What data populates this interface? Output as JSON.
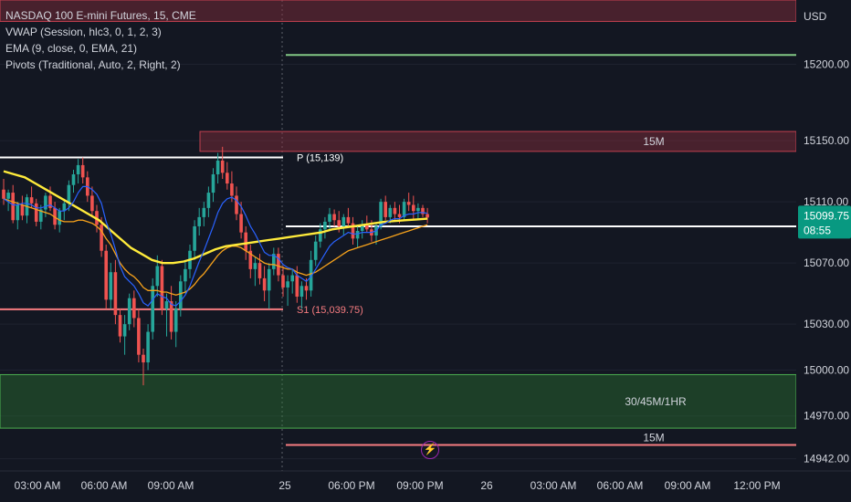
{
  "legend": {
    "symbol": "NASDAQ 100 E-mini Futures, 15, CME",
    "vwap": "VWAP (Session, hlc3, 0, 1, 2, 3)",
    "ema": "EMA (9, close, 0, EMA, 21)",
    "pivots": "Pivots (Traditional, Auto, 2, Right, 2)"
  },
  "currency": "USD",
  "price_tag": {
    "price": "15099.75",
    "countdown": "08:55"
  },
  "alert_icon": "lightning-icon",
  "colors": {
    "background": "#131722",
    "up": "#26a69a",
    "down": "#ef5350",
    "vwap": "#ffeb3b",
    "ema_fast": "#2962ff",
    "ema_slow": "#f7a21b",
    "pivot": "#ffffff",
    "support": "#f77c80",
    "zone_red": "#8a2e3b",
    "zone_green": "#2e7d32",
    "level_green": "#81c784",
    "price_tag": "#089981"
  },
  "chart_data": {
    "type": "candlestick",
    "title": "NASDAQ 100 E-mini Futures, 15, CME",
    "xlabel": "",
    "ylabel": "",
    "ylim": [
      14934,
      15242
    ],
    "yticks": [
      15200.0,
      15150.0,
      15110.0,
      15070.0,
      15030.0,
      15000.0,
      14970.0,
      14942.0
    ],
    "x_ticks": [
      "03:00 AM",
      "06:00 AM",
      "09:00 AM",
      "25",
      "06:00 PM",
      "09:00 PM",
      "26",
      "03:00 AM",
      "06:00 AM",
      "09:00 AM",
      "12:00 PM"
    ],
    "last_price": 15099.75,
    "candles": [
      [
        15118,
        15125,
        15108,
        15112
      ],
      [
        15112,
        15118,
        15104,
        15116
      ],
      [
        15116,
        15121,
        15096,
        15098
      ],
      [
        15098,
        15110,
        15092,
        15108
      ],
      [
        15108,
        15114,
        15098,
        15101
      ],
      [
        15101,
        15115,
        15096,
        15113
      ],
      [
        15113,
        15120,
        15106,
        15109
      ],
      [
        15109,
        15112,
        15094,
        15097
      ],
      [
        15097,
        15108,
        15092,
        15105
      ],
      [
        15105,
        15116,
        15100,
        15114
      ],
      [
        15114,
        15120,
        15104,
        15106
      ],
      [
        15106,
        15110,
        15092,
        15095
      ],
      [
        15095,
        15106,
        15090,
        15104
      ],
      [
        15104,
        15112,
        15098,
        15109
      ],
      [
        15109,
        15124,
        15104,
        15121
      ],
      [
        15121,
        15131,
        15116,
        15128
      ],
      [
        15128,
        15138,
        15122,
        15134
      ],
      [
        15134,
        15139,
        15122,
        15126
      ],
      [
        15126,
        15130,
        15110,
        15114
      ],
      [
        15114,
        15120,
        15100,
        15104
      ],
      [
        15104,
        15108,
        15090,
        15095
      ],
      [
        15095,
        15100,
        15074,
        15078
      ],
      [
        15078,
        15082,
        15040,
        15046
      ],
      [
        15046,
        15070,
        15040,
        15064
      ],
      [
        15064,
        15072,
        15030,
        15036
      ],
      [
        15036,
        15040,
        15018,
        15022
      ],
      [
        15022,
        15036,
        15010,
        15030
      ],
      [
        15030,
        15050,
        15026,
        15047
      ],
      [
        15047,
        15052,
        15028,
        15034
      ],
      [
        15034,
        15040,
        15005,
        15010
      ],
      [
        15010,
        15014,
        14990,
        15005
      ],
      [
        15005,
        15030,
        15000,
        15025
      ],
      [
        15025,
        15060,
        15020,
        15055
      ],
      [
        15055,
        15075,
        15048,
        15068
      ],
      [
        15068,
        15072,
        15036,
        15040
      ],
      [
        15040,
        15050,
        15022,
        15045
      ],
      [
        15045,
        15055,
        15020,
        15025
      ],
      [
        15025,
        15045,
        15015,
        15040
      ],
      [
        15040,
        15062,
        15035,
        15058
      ],
      [
        15058,
        15072,
        15050,
        15066
      ],
      [
        15066,
        15082,
        15060,
        15078
      ],
      [
        15078,
        15098,
        15072,
        15094
      ],
      [
        15094,
        15106,
        15088,
        15100
      ],
      [
        15100,
        15110,
        15094,
        15106
      ],
      [
        15106,
        15120,
        15100,
        15116
      ],
      [
        15116,
        15132,
        15110,
        15128
      ],
      [
        15128,
        15142,
        15122,
        15137
      ],
      [
        15137,
        15146,
        15125,
        15129
      ],
      [
        15129,
        15136,
        15118,
        15122
      ],
      [
        15122,
        15130,
        15110,
        15114
      ],
      [
        15114,
        15120,
        15098,
        15102
      ],
      [
        15102,
        15110,
        15086,
        15090
      ],
      [
        15090,
        15094,
        15072,
        15078
      ],
      [
        15078,
        15082,
        15060,
        15066
      ],
      [
        15066,
        15074,
        15055,
        15070
      ],
      [
        15070,
        15076,
        15056,
        15060
      ],
      [
        15060,
        15068,
        15045,
        15052
      ],
      [
        15052,
        15070,
        15040,
        15066
      ],
      [
        15066,
        15080,
        15062,
        15076
      ],
      [
        15076,
        15080,
        15058,
        15062
      ],
      [
        15062,
        15068,
        15048,
        15054
      ],
      [
        15054,
        15062,
        15042,
        15058
      ],
      [
        15058,
        15066,
        15050,
        15062
      ],
      [
        15062,
        15068,
        15044,
        15048
      ],
      [
        15048,
        15058,
        15040,
        15055
      ],
      [
        15055,
        15060,
        15046,
        15052
      ],
      [
        15052,
        15078,
        15048,
        15072
      ],
      [
        15072,
        15088,
        15068,
        15084
      ],
      [
        15084,
        15096,
        15080,
        15092
      ],
      [
        15092,
        15100,
        15086,
        15097
      ],
      [
        15097,
        15106,
        15092,
        15102
      ],
      [
        15102,
        15105,
        15094,
        15098
      ],
      [
        15098,
        15104,
        15090,
        15094
      ],
      [
        15094,
        15102,
        15088,
        15100
      ],
      [
        15100,
        15106,
        15094,
        15096
      ],
      [
        15096,
        15100,
        15082,
        15086
      ],
      [
        15086,
        15094,
        15080,
        15091
      ],
      [
        15091,
        15098,
        15086,
        15095
      ],
      [
        15095,
        15101,
        15090,
        15092
      ],
      [
        15092,
        15098,
        15084,
        15088
      ],
      [
        15088,
        15096,
        15082,
        15094
      ],
      [
        15094,
        15112,
        15092,
        15110
      ],
      [
        15110,
        15114,
        15098,
        15100
      ],
      [
        15100,
        15108,
        15096,
        15106
      ],
      [
        15106,
        15110,
        15098,
        15102
      ],
      [
        15102,
        15108,
        15096,
        15100
      ],
      [
        15100,
        15112,
        15098,
        15110
      ],
      [
        15110,
        15116,
        15104,
        15108
      ],
      [
        15108,
        15114,
        15098,
        15104
      ],
      [
        15104,
        15109,
        15098,
        15106
      ],
      [
        15106,
        15108,
        15100,
        15102
      ],
      [
        15102,
        15106,
        15096,
        15099.75
      ]
    ],
    "vwap": [
      15130,
      15128,
      15126,
      15122,
      15118,
      15114,
      15110,
      15106,
      15102,
      15098,
      15092,
      15086,
      15080,
      15076,
      15072,
      15070,
      15070,
      15071,
      15073,
      15076,
      15079,
      15081,
      15082,
      15083,
      15084,
      15085,
      15086,
      15087,
      15088,
      15089,
      15090,
      15092,
      15093,
      15094,
      15095,
      15096,
      15097,
      15097.5,
      15098,
      15098.5,
      15099
    ],
    "ema_fast": [
      15112,
      15110,
      15108,
      15108,
      15109,
      15109,
      15108,
      15106,
      15106,
      15107,
      15108,
      15106,
      15104,
      15104,
      15106,
      15110,
      15116,
      15120,
      15120,
      15118,
      15115,
      15109,
      15097,
      15089,
      15079,
      15068,
      15061,
      15058,
      15055,
      15050,
      15044,
      15042,
      15046,
      15050,
      15048,
      15047,
      15043,
      15042,
      15045,
      15049,
      15055,
      15063,
      15071,
      15078,
      15086,
      15094,
      15103,
      15109,
      15112,
      15113,
      15111,
      15107,
      15101,
      15094,
      15089,
      15083,
      15077,
      15075,
      15075,
      15073,
      15069,
      15067,
      15066,
      15062,
      15060,
      15058,
      15061,
      15066,
      15071,
      15076,
      15081,
      15084,
      15086,
      15088,
      15090,
      15089,
      15089,
      15090,
      15090,
      15090,
      15091,
      15095,
      15096,
      15098,
      15099,
      15099,
      15101,
      15102,
      15102,
      15103,
      15103,
      15102.5
    ],
    "ema_slow": [
      15112,
      15111,
      15110,
      15109,
      15108,
      15107,
      15106,
      15105,
      15104,
      15103,
      15102,
      15100,
      15098,
      15097,
      15097,
      15097,
      15098,
      15098,
      15097,
      15096,
      15094,
      15091,
      15086,
      15082,
      15076,
      15070,
      15066,
      15063,
      15061,
      15058,
      15054,
      15052,
      15052,
      15052,
      15051,
      15051,
      15050,
      15049,
      15050,
      15051,
      15053,
      15056,
      15060,
      15063,
      15067,
      15071,
      15075,
      15078,
      15080,
      15081,
      15081,
      15080,
      15078,
      15076,
      15074,
      15072,
      15070,
      15069,
      15069,
      15068,
      15067,
      15066,
      15066,
      15064,
      15063,
      15062,
      15063,
      15064,
      15066,
      15068,
      15070,
      15072,
      15074,
      15076,
      15078,
      15079,
      15080,
      15081,
      15082,
      15083,
      15084,
      15085,
      15086,
      15087,
      15088,
      15089,
      15090,
      15091,
      15092,
      15093,
      15094,
      15095
    ],
    "pivots": [
      {
        "label": "P (15,139)",
        "value": 15139
      },
      {
        "label": "S1 (15,039.75)",
        "value": 15039.75
      }
    ],
    "current_level": 15094,
    "green_level": 15206,
    "zones": [
      {
        "label": "",
        "from": 15228,
        "to": 15242,
        "color": "red"
      },
      {
        "label": "15M",
        "from": 15143,
        "to": 15156,
        "color": "red"
      },
      {
        "label": "30/45M/1HR",
        "from": 14962,
        "to": 14997,
        "color": "green"
      },
      {
        "label": "15M",
        "from": 14951,
        "to": 14951,
        "color": "red-line"
      }
    ]
  }
}
